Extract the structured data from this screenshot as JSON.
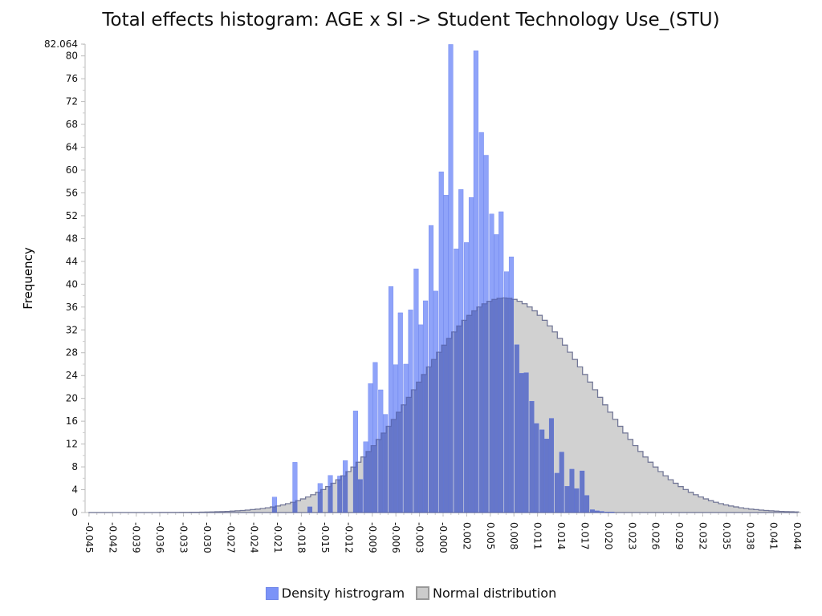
{
  "chart_data": {
    "type": "bar",
    "title": "Total effects histogram: AGE x SI -> Student Technology Use_(STU)",
    "ylabel": "Frequency",
    "xlabel": "",
    "ylim": [
      0,
      82.064
    ],
    "ytick_values": [
      0,
      4,
      8,
      12,
      16,
      20,
      24,
      28,
      32,
      36,
      40,
      44,
      48,
      52,
      56,
      60,
      64,
      68,
      72,
      76,
      80,
      82.064
    ],
    "ytick_labels": [
      "0",
      "4",
      "8",
      "12",
      "16",
      "20",
      "24",
      "28",
      "32",
      "36",
      "40",
      "44",
      "48",
      "52",
      "56",
      "60",
      "64",
      "68",
      "72",
      "76",
      "80",
      "82.064"
    ],
    "xlim": [
      -0.0455,
      0.0455
    ],
    "xtick_labels": [
      "-0.045",
      "-0.042",
      "-0.039",
      "-0.036",
      "-0.033",
      "-0.030",
      "-0.027",
      "-0.024",
      "-0.021",
      "-0.018",
      "-0.015",
      "-0.012",
      "-0.009",
      "-0.006",
      "-0.003",
      "-0.000",
      "0.002",
      "0.005",
      "0.008",
      "0.011",
      "0.014",
      "0.017",
      "0.020",
      "0.023",
      "0.026",
      "0.029",
      "0.032",
      "0.035",
      "0.038",
      "0.041",
      "0.044"
    ],
    "bin_width": 0.00064,
    "grid": false,
    "legend_position": "bottom",
    "series": [
      {
        "name": "Density histrogram",
        "color": "#7B93F8",
        "x": [
          -0.0214,
          -0.0188,
          -0.0169,
          -0.0156,
          -0.0143,
          -0.0131,
          -0.0124,
          -0.0111,
          -0.0105,
          -0.0098,
          -0.0092,
          -0.0086,
          -0.0079,
          -0.0073,
          -0.0066,
          -0.006,
          -0.0054,
          -0.0047,
          -0.0041,
          -0.0034,
          -0.0028,
          -0.0022,
          -0.0015,
          -0.0009,
          -0.0002,
          0.0004,
          0.001,
          0.0017,
          0.0023,
          0.003,
          0.0036,
          0.0042,
          0.0049,
          0.0055,
          0.0062,
          0.0068,
          0.0074,
          0.0081,
          0.0087,
          0.0094,
          0.01,
          0.0106,
          0.0113,
          0.0119,
          0.0126,
          0.0132,
          0.0138,
          0.0145,
          0.0151,
          0.0158,
          0.0164,
          0.017,
          0.0177,
          0.0183,
          0.019,
          0.0196,
          0.0202,
          0.0209,
          0.0215,
          0.0222,
          0.0228,
          0.0234,
          0.0241,
          0.0247,
          0.0254,
          0.026,
          0.0266,
          0.0273,
          0.0279,
          0.0286,
          0.0292,
          0.0298,
          0.0305,
          0.0311,
          0.0318,
          0.0324
        ],
        "values": [
          2.7,
          8.8,
          1.0,
          5.1,
          6.5,
          6.4,
          9.1,
          17.8,
          5.8,
          12.4,
          22.6,
          26.3,
          21.5,
          17.2,
          39.6,
          25.9,
          35.0,
          26.0,
          35.5,
          42.7,
          32.9,
          37.1,
          50.3,
          38.8,
          59.7,
          55.6,
          82.0,
          46.2,
          56.6,
          47.3,
          55.2,
          80.9,
          66.6,
          62.6,
          52.3,
          48.7,
          52.7,
          42.2,
          44.8,
          29.4,
          24.4,
          24.5,
          19.5,
          15.6,
          14.5,
          12.9,
          16.5,
          6.9,
          10.6,
          4.6,
          7.6,
          4.2,
          7.3,
          3.0,
          0.5,
          0.3,
          0.2,
          0.1,
          0.1,
          0.0,
          0.0,
          0.0,
          0.0,
          0.0,
          0.0,
          0.0,
          0.0,
          0.0,
          0.0,
          0.0,
          0.0,
          0.0,
          0.0,
          0.0,
          0.0,
          0.0
        ]
      },
      {
        "name": "Normal distribution",
        "color": "#CCCCCC",
        "mean": 0.0078,
        "sd": 0.0109,
        "peak": 37.6
      }
    ]
  },
  "legend": {
    "items": [
      {
        "label": "Density histrogram",
        "color": "#7B93F8"
      },
      {
        "label": "Normal distribution",
        "color": "#CCCCCC"
      }
    ]
  }
}
